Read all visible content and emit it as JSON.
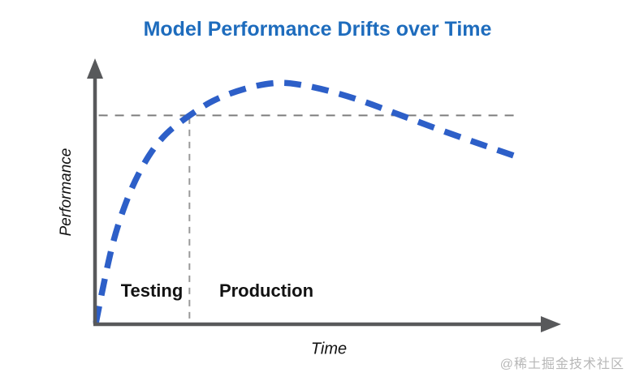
{
  "watermark": "@稀土掘金技术社区",
  "colors": {
    "title_blue": "#1e6cbd",
    "curve_blue": "#2d5fc8",
    "axis_gray": "#58595b",
    "threshold_dash_gray": "#7d7d7d",
    "divider_dash_gray": "#999999",
    "watermark_gray": "#b7b7b7",
    "label_black": "#121212"
  },
  "chart_data": {
    "type": "line",
    "title": "Model Performance Drifts over Time",
    "xlabel": "Time",
    "ylabel": "Performance",
    "grid": false,
    "legend": "none",
    "axes": {
      "style": "arrow axes, no tick labels",
      "x_range_normalized": [
        0,
        1
      ],
      "y_range_normalized": [
        0,
        1
      ]
    },
    "series": [
      {
        "name": "model performance",
        "style": "thick blue dashed curve",
        "points": [
          [
            0.002,
            0.005
          ],
          [
            0.025,
            0.22
          ],
          [
            0.05,
            0.4
          ],
          [
            0.09,
            0.585
          ],
          [
            0.14,
            0.73
          ],
          [
            0.203,
            0.82
          ],
          [
            0.27,
            0.895
          ],
          [
            0.38,
            0.952
          ],
          [
            0.46,
            0.935
          ],
          [
            0.56,
            0.885
          ],
          [
            0.655,
            0.82
          ],
          [
            0.78,
            0.735
          ],
          [
            0.92,
            0.648
          ]
        ]
      }
    ],
    "annotations": {
      "threshold": {
        "y": 0.818,
        "x_start": 0.008,
        "x_end": 0.912,
        "style": "gray dashed horizontal line"
      },
      "phase_divider": {
        "x": 0.203,
        "y_top": 0.81,
        "y_bottom": 0.005,
        "style": "gray dashed vertical line"
      },
      "phases": [
        {
          "label": "Testing"
        },
        {
          "label": "Production"
        }
      ]
    }
  }
}
